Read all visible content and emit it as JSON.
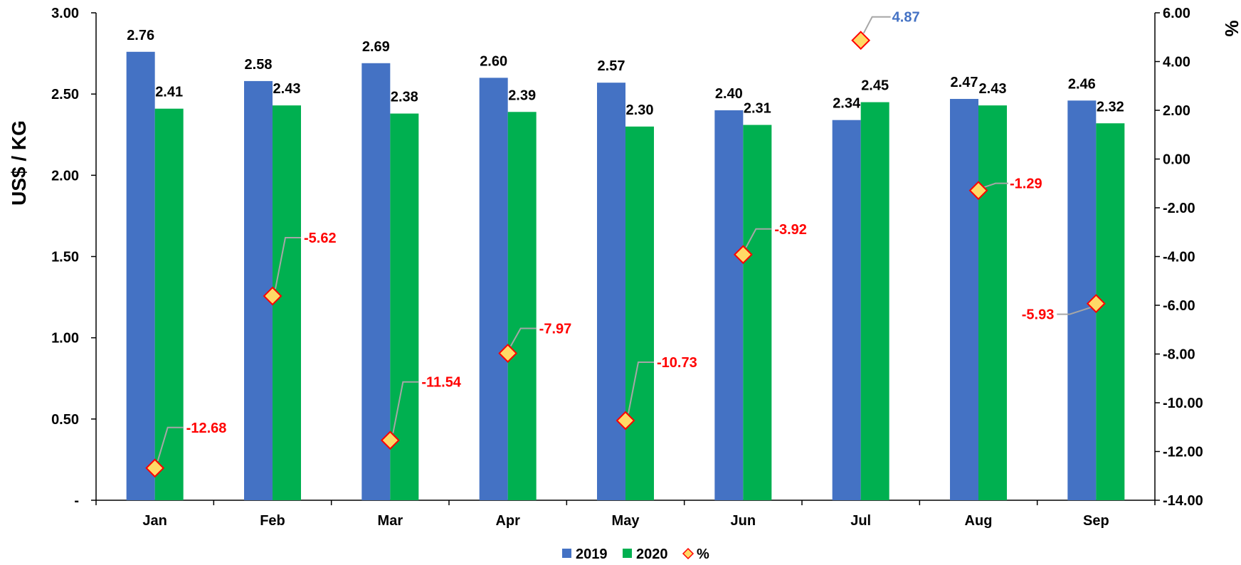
{
  "chart_data": {
    "type": "bar",
    "title": "",
    "categories": [
      "Jan",
      "Feb",
      "Mar",
      "Apr",
      "May",
      "Jun",
      "Jul",
      "Aug",
      "Sep"
    ],
    "series": [
      {
        "name": "2019",
        "type": "bar",
        "axis": "left",
        "color": "#4472C4",
        "values": [
          2.76,
          2.58,
          2.69,
          2.6,
          2.57,
          2.4,
          2.34,
          2.47,
          2.46
        ]
      },
      {
        "name": "2020",
        "type": "bar",
        "axis": "left",
        "color": "#00B050",
        "values": [
          2.41,
          2.43,
          2.38,
          2.39,
          2.3,
          2.31,
          2.45,
          2.43,
          2.32
        ]
      },
      {
        "name": "%",
        "type": "scatter",
        "marker": "diamond",
        "axis": "right",
        "color": "#FFD966",
        "edge_color": "#FF0000",
        "values": [
          -12.68,
          -5.62,
          -11.54,
          -7.97,
          -10.73,
          -3.92,
          4.87,
          -1.29,
          -5.93
        ]
      }
    ],
    "ylabel": "US$ / KG",
    "ylabel_right": "%",
    "ylim": [
      0,
      3.0
    ],
    "ylim_right": [
      -14,
      6
    ],
    "yticks": [
      "-",
      "0.50",
      "1.00",
      "1.50",
      "2.00",
      "2.50",
      "3.00"
    ],
    "yticks_right": [
      "-14.00",
      "-12.00",
      "-10.00",
      "-8.00",
      "-6.00",
      "-4.00",
      "-2.00",
      "0.00",
      "2.00",
      "4.00",
      "6.00"
    ],
    "pct_label_colors": {
      "positive": "#4472C4",
      "negative": "#FF0000"
    },
    "legend": {
      "position": "bottom",
      "items": [
        "2019",
        "2020",
        "%"
      ]
    },
    "grid": false
  }
}
